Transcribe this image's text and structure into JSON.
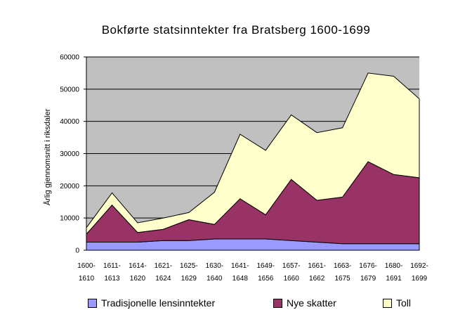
{
  "chart_data": {
    "type": "area",
    "stacked": true,
    "title": "Bokførte statsinntekter fra Bratsberg 1600-1699",
    "ylabel": "Årlig gjennomsnitt i riksdaler",
    "xlabel": "",
    "ylim": [
      0,
      60000
    ],
    "yticks": [
      "0",
      "10000",
      "20000",
      "30000",
      "40000",
      "50000",
      "60000"
    ],
    "grid": true,
    "legend_position": "bottom",
    "plot_background": "#c0c0c0",
    "categories": [
      [
        "1600-",
        "1610"
      ],
      [
        "1611-",
        "1613"
      ],
      [
        "1614-",
        "1620"
      ],
      [
        "1621-",
        "1624"
      ],
      [
        "1625-",
        "1629"
      ],
      [
        "1630-",
        "1640"
      ],
      [
        "1641-",
        "1648"
      ],
      [
        "1649-",
        "1656"
      ],
      [
        "1657-",
        "1660"
      ],
      [
        "1661-",
        "1662"
      ],
      [
        "1663-",
        "1675"
      ],
      [
        "1676-",
        "1679"
      ],
      [
        "1680-",
        "1691"
      ],
      [
        "1692-",
        "1699"
      ]
    ],
    "series": [
      {
        "name": "Tradisjonelle lensinntekter",
        "color": "#9999ff",
        "values": [
          2500,
          2500,
          2500,
          3000,
          3000,
          3500,
          3500,
          3500,
          3000,
          2500,
          2000,
          2000,
          2000,
          2000
        ]
      },
      {
        "name": "Nye skatter",
        "color": "#993366",
        "values": [
          2500,
          11500,
          3000,
          3500,
          6500,
          4500,
          12500,
          7500,
          19000,
          13000,
          14500,
          25500,
          21500,
          20500
        ]
      },
      {
        "name": "Toll",
        "color": "#ffffcc",
        "values": [
          2000,
          3800,
          3000,
          3500,
          2200,
          10000,
          20000,
          20000,
          20000,
          21000,
          21500,
          27500,
          30500,
          24500
        ]
      }
    ]
  }
}
